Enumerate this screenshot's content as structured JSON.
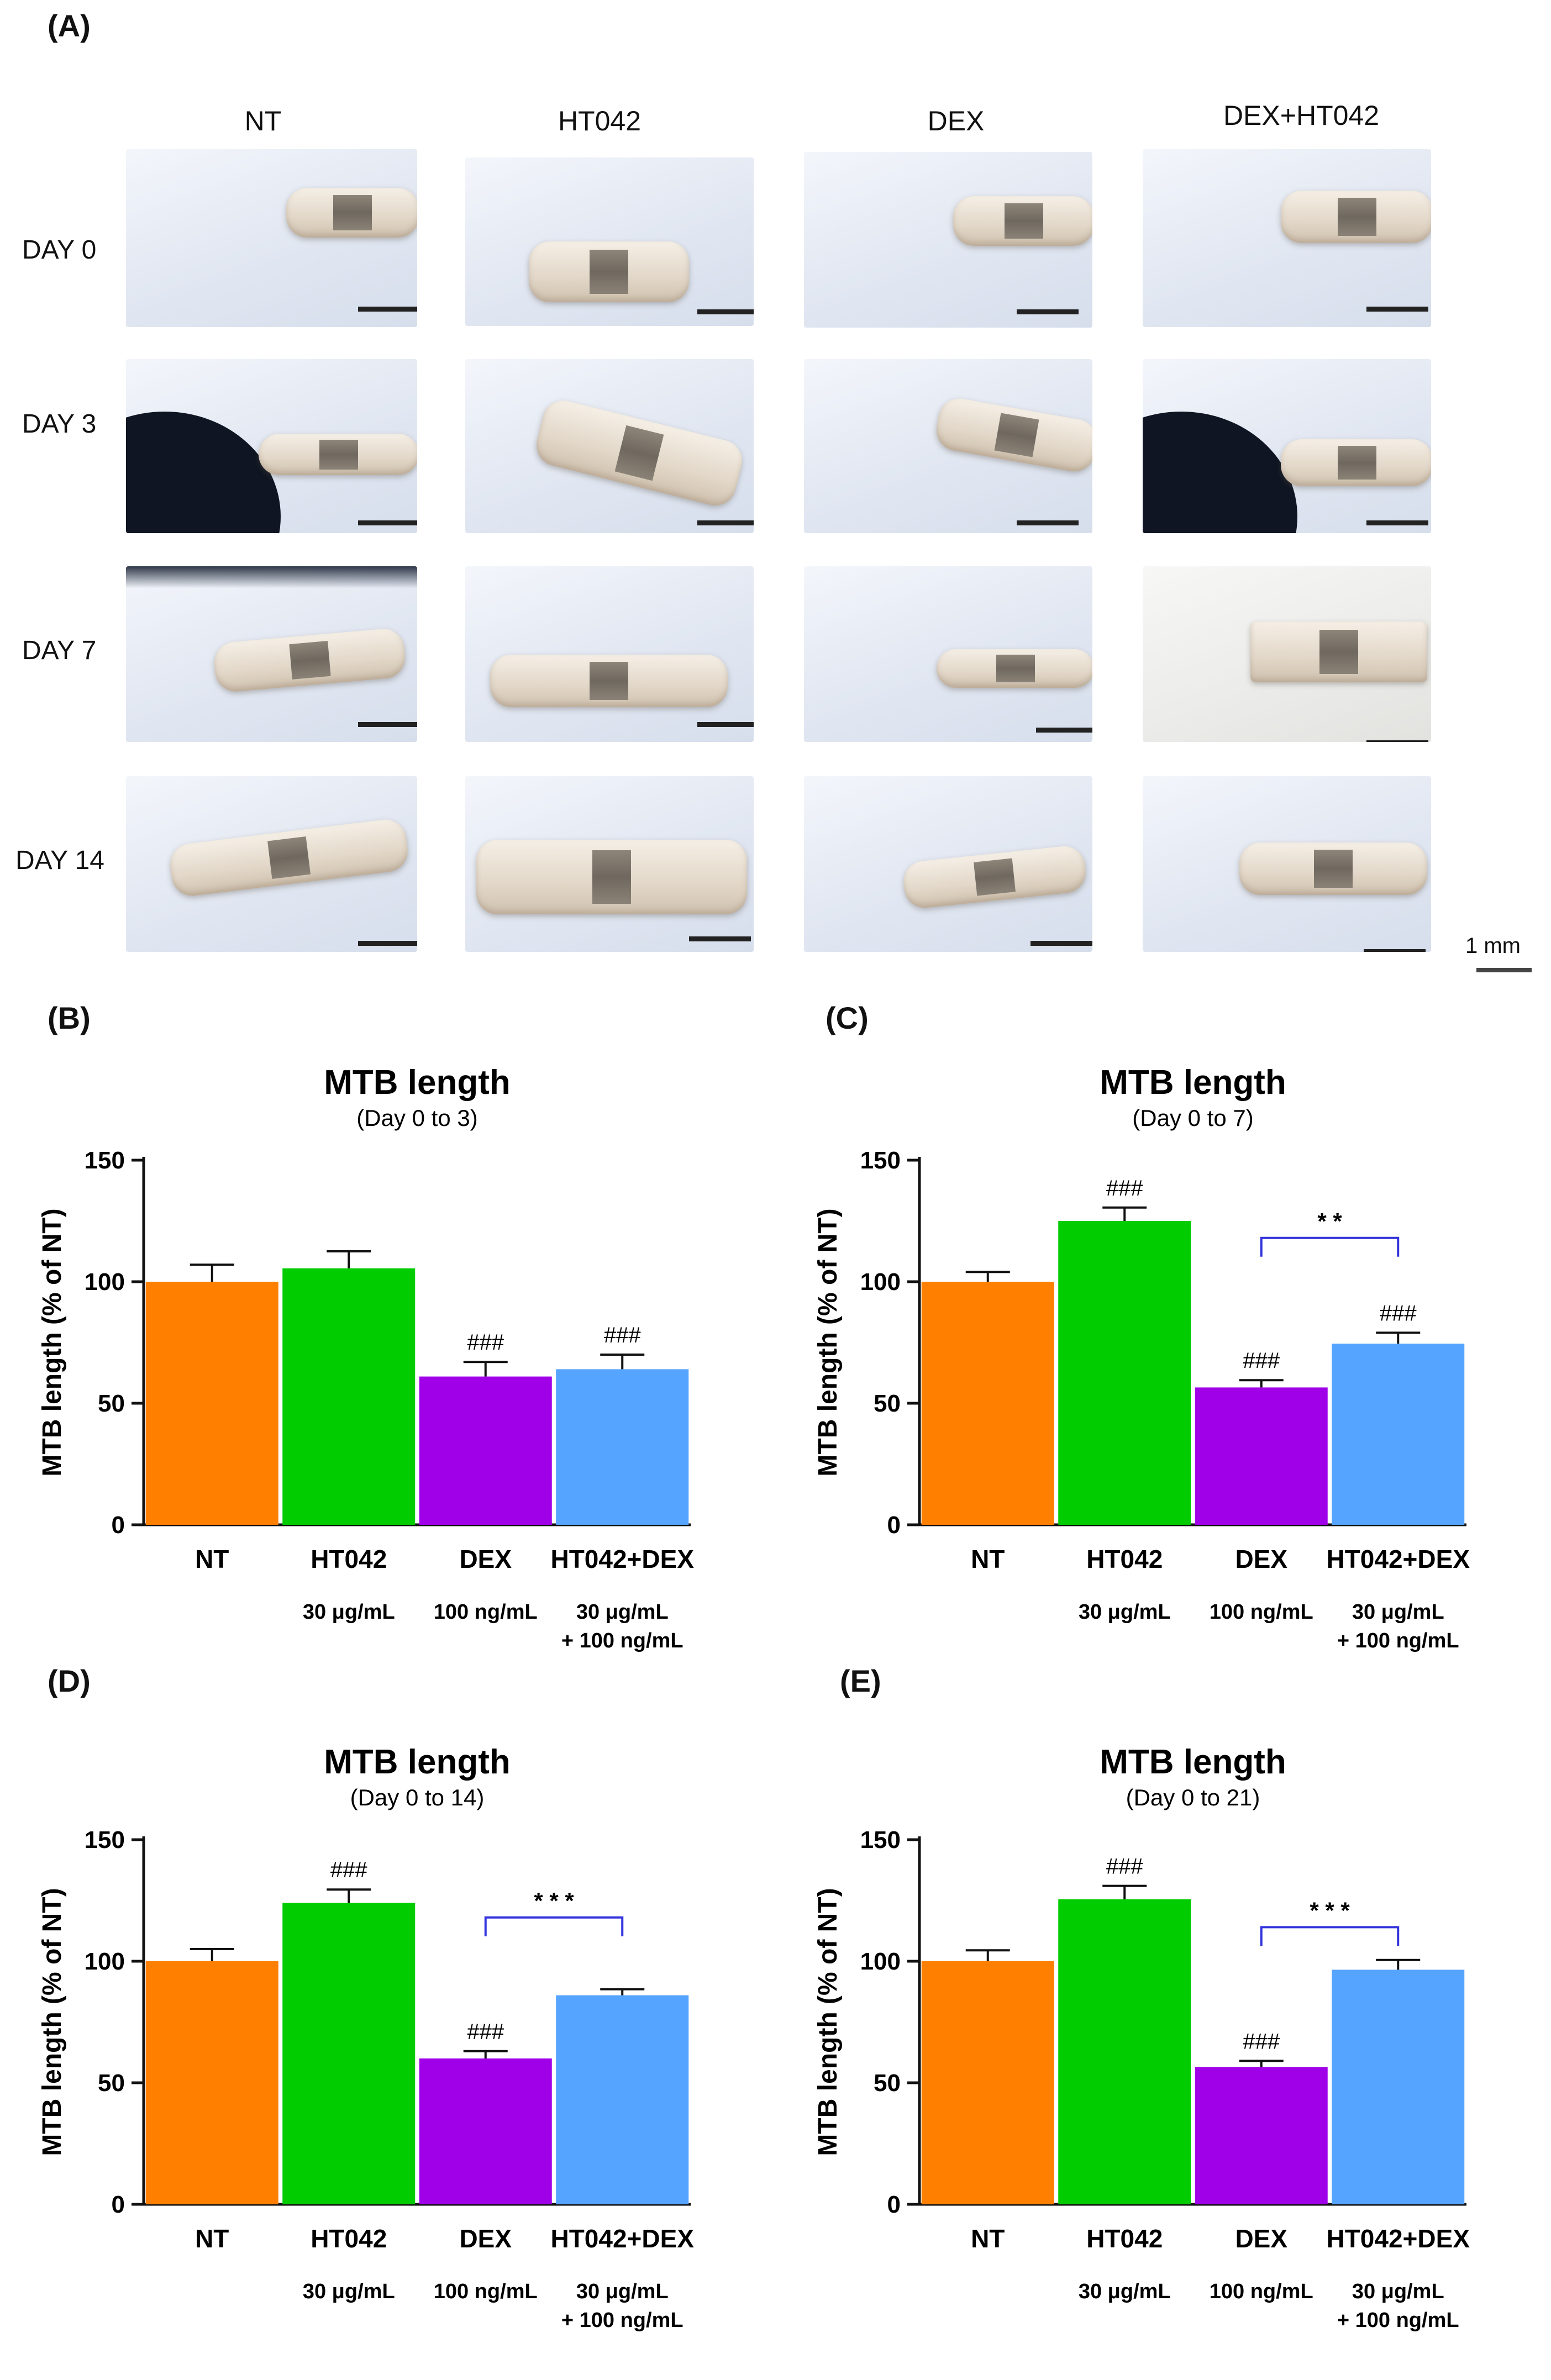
{
  "panel_labels": {
    "a": "(A)",
    "b": "(B)",
    "c": "(C)",
    "d": "(D)",
    "e": "(E)"
  },
  "micrographs": {
    "columns": [
      "NT",
      "HT042",
      "DEX",
      "DEX+HT042"
    ],
    "rows": [
      "DAY 0",
      "DAY 3",
      "DAY 7",
      "DAY 14"
    ],
    "scale_label": "1 mm"
  },
  "colors": {
    "NT": "#ff7f00",
    "HT042": "#00cc00",
    "DEX": "#a000e8",
    "HT042+DEX": "#55a4ff",
    "bracket": "#3434dd"
  },
  "chart_data": [
    {
      "type": "bar",
      "panel": "(B)",
      "title": "MTB length",
      "subtitle": "(Day 0 to 3)",
      "ylabel": "MTB length (% of NT)",
      "ylim": [
        0,
        150
      ],
      "yticks": [
        0,
        50,
        100,
        150
      ],
      "categories": [
        "NT",
        "HT042",
        "DEX",
        "HT042+DEX"
      ],
      "doses": [
        "",
        "30 μg/mL",
        "100 ng/mL",
        "30 μg/mL|+ 100 ng/mL"
      ],
      "values": [
        100,
        105.5,
        61,
        64
      ],
      "errors": [
        7,
        7,
        6,
        6
      ],
      "annotations": [
        "",
        "",
        "###",
        "###"
      ],
      "bracket": null
    },
    {
      "type": "bar",
      "panel": "(C)",
      "title": "MTB length",
      "subtitle": "(Day 0 to 7)",
      "ylabel": "MTB length (% of NT)",
      "ylim": [
        0,
        150
      ],
      "yticks": [
        0,
        50,
        100,
        150
      ],
      "categories": [
        "NT",
        "HT042",
        "DEX",
        "HT042+DEX"
      ],
      "doses": [
        "",
        "30 μg/mL",
        "100 ng/mL",
        "30 μg/mL|+ 100 ng/mL"
      ],
      "values": [
        100,
        125,
        56.5,
        74.5
      ],
      "errors": [
        4,
        5.5,
        3,
        4.5
      ],
      "annotations": [
        "",
        "###",
        "###",
        "###"
      ],
      "bracket": {
        "from": 2,
        "to": 3,
        "label": "* *",
        "y": 118
      }
    },
    {
      "type": "bar",
      "panel": "(D)",
      "title": "MTB length",
      "subtitle": "(Day 0 to 14)",
      "ylabel": "MTB length (% of NT)",
      "ylim": [
        0,
        150
      ],
      "yticks": [
        0,
        50,
        100,
        150
      ],
      "categories": [
        "NT",
        "HT042",
        "DEX",
        "HT042+DEX"
      ],
      "doses": [
        "",
        "30 μg/mL",
        "100 ng/mL",
        "30 μg/mL|+ 100 ng/mL"
      ],
      "values": [
        100,
        124,
        60,
        86
      ],
      "errors": [
        5,
        5.5,
        3,
        2.5
      ],
      "annotations": [
        "",
        "###",
        "###",
        ""
      ],
      "bracket": {
        "from": 2,
        "to": 3,
        "label": "* * *",
        "y": 118
      }
    },
    {
      "type": "bar",
      "panel": "(E)",
      "title": "MTB length",
      "subtitle": "(Day 0 to 21)",
      "ylabel": "MTB length (% of NT)",
      "ylim": [
        0,
        150
      ],
      "yticks": [
        0,
        50,
        100,
        150
      ],
      "categories": [
        "NT",
        "HT042",
        "DEX",
        "HT042+DEX"
      ],
      "doses": [
        "",
        "30 μg/mL",
        "100 ng/mL",
        "30 μg/mL|+ 100 ng/mL"
      ],
      "values": [
        100,
        125.5,
        56.5,
        96.5
      ],
      "errors": [
        4.5,
        5.5,
        2.5,
        4
      ],
      "annotations": [
        "",
        "###",
        "###",
        ""
      ],
      "bracket": {
        "from": 2,
        "to": 3,
        "label": "* * *",
        "y": 114
      }
    }
  ]
}
